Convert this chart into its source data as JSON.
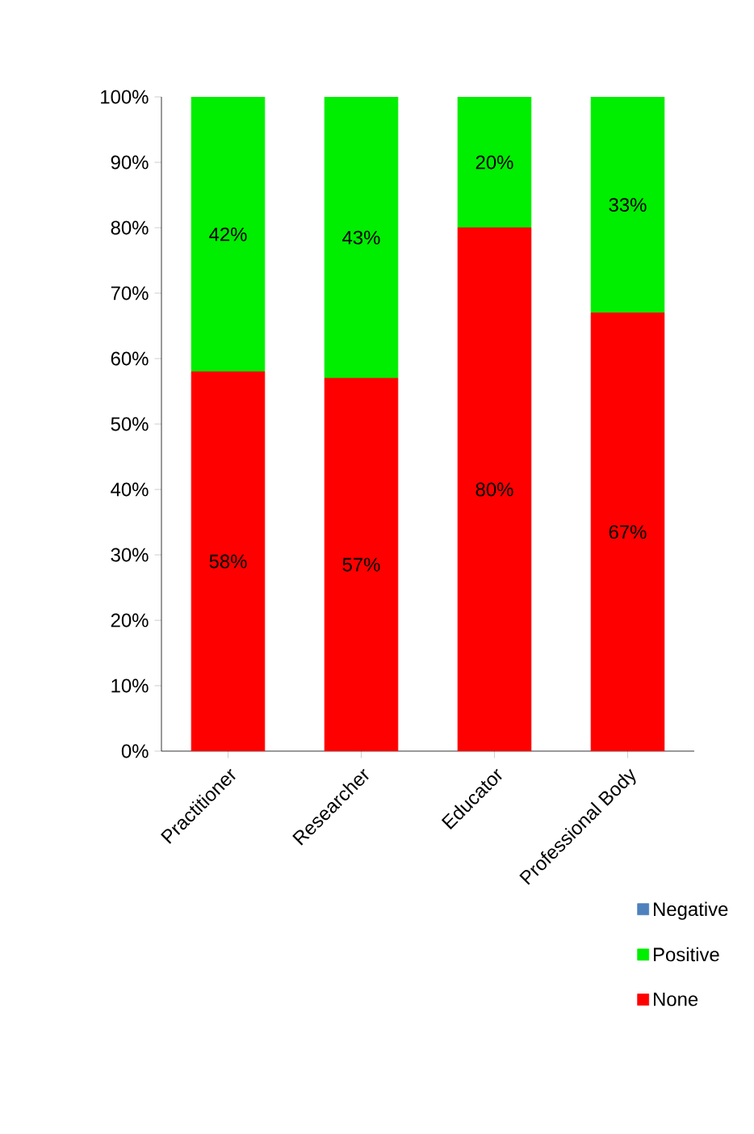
{
  "chart_data": {
    "type": "bar",
    "stacked": true,
    "categories": [
      "Practitioner",
      "Researcher",
      "Educator",
      "Professional Body"
    ],
    "series": [
      {
        "name": "None",
        "color": "#ff0000",
        "values": [
          58,
          57,
          80,
          67
        ],
        "value_labels": [
          "58%",
          "57%",
          "80%",
          "67%"
        ]
      },
      {
        "name": "Positive",
        "color": "#00ee00",
        "values": [
          42,
          43,
          20,
          33
        ],
        "value_labels": [
          "42%",
          "43%",
          "20%",
          "33%"
        ]
      },
      {
        "name": "Negative",
        "color": "#4f81bd",
        "values": [
          0,
          0,
          0,
          0
        ],
        "value_labels": [
          null,
          null,
          null,
          null
        ]
      }
    ],
    "ylim": [
      0,
      100
    ],
    "yticks": [
      {
        "value": 0,
        "label": "0%"
      },
      {
        "value": 10,
        "label": "10%"
      },
      {
        "value": 20,
        "label": "20%"
      },
      {
        "value": 30,
        "label": "30%"
      },
      {
        "value": 40,
        "label": "40%"
      },
      {
        "value": 50,
        "label": "50%"
      },
      {
        "value": 60,
        "label": "60%"
      },
      {
        "value": 70,
        "label": "70%"
      },
      {
        "value": 80,
        "label": "80%"
      },
      {
        "value": 90,
        "label": "90%"
      },
      {
        "value": 100,
        "label": "100%"
      }
    ],
    "legend": "bottom right"
  }
}
